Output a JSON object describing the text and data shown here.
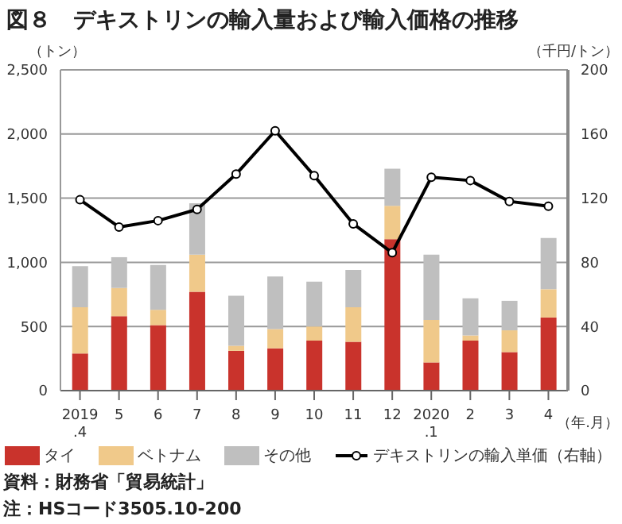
{
  "chart_data": {
    "type": "bar",
    "title": "図８　デキストリンの輸入量および輸入価格の推移",
    "ylabel": "（トン）",
    "y2label": "（千円/トン）",
    "xlabel": "（年.月）",
    "categories": [
      "2019\n.4",
      "5",
      "6",
      "7",
      "8",
      "9",
      "10",
      "11",
      "12",
      "2020\n.1",
      "2",
      "3",
      "4"
    ],
    "stacked": true,
    "series": [
      {
        "name": "タイ",
        "color": "#c9332c",
        "values": [
          290,
          580,
          510,
          770,
          310,
          330,
          390,
          380,
          1180,
          220,
          390,
          300,
          570
        ]
      },
      {
        "name": "ベトナム",
        "color": "#f0c98a",
        "values": [
          360,
          220,
          120,
          290,
          40,
          150,
          110,
          270,
          260,
          330,
          40,
          170,
          220
        ]
      },
      {
        "name": "その他",
        "color": "#bfbfbf",
        "values": [
          320,
          240,
          350,
          400,
          390,
          410,
          350,
          290,
          290,
          510,
          290,
          230,
          400
        ]
      },
      {
        "name": "デキストリンの輸入単価（右軸）",
        "type": "line",
        "axis": "y2",
        "color": "#000000",
        "marker": "circle",
        "values": [
          119,
          102,
          106,
          113,
          135,
          162,
          134,
          104,
          86,
          133,
          131,
          118,
          115
        ]
      }
    ],
    "ylim": [
      0,
      2500
    ],
    "yticks": [
      0,
      500,
      {
        "value": 1000,
        "label": "1,000"
      },
      {
        "value": 1500,
        "label": "1,500"
      },
      {
        "value": 2000,
        "label": "2,000"
      },
      {
        "value": 2500,
        "label": "2,500"
      }
    ],
    "y2lim": [
      0,
      200
    ],
    "y2ticks": [
      0,
      40,
      80,
      120,
      160,
      200
    ],
    "grid": "y",
    "legend": "bottom",
    "annotations": [
      "資料：財務省「貿易統計」",
      "注：HSコード3505.10-200"
    ]
  }
}
